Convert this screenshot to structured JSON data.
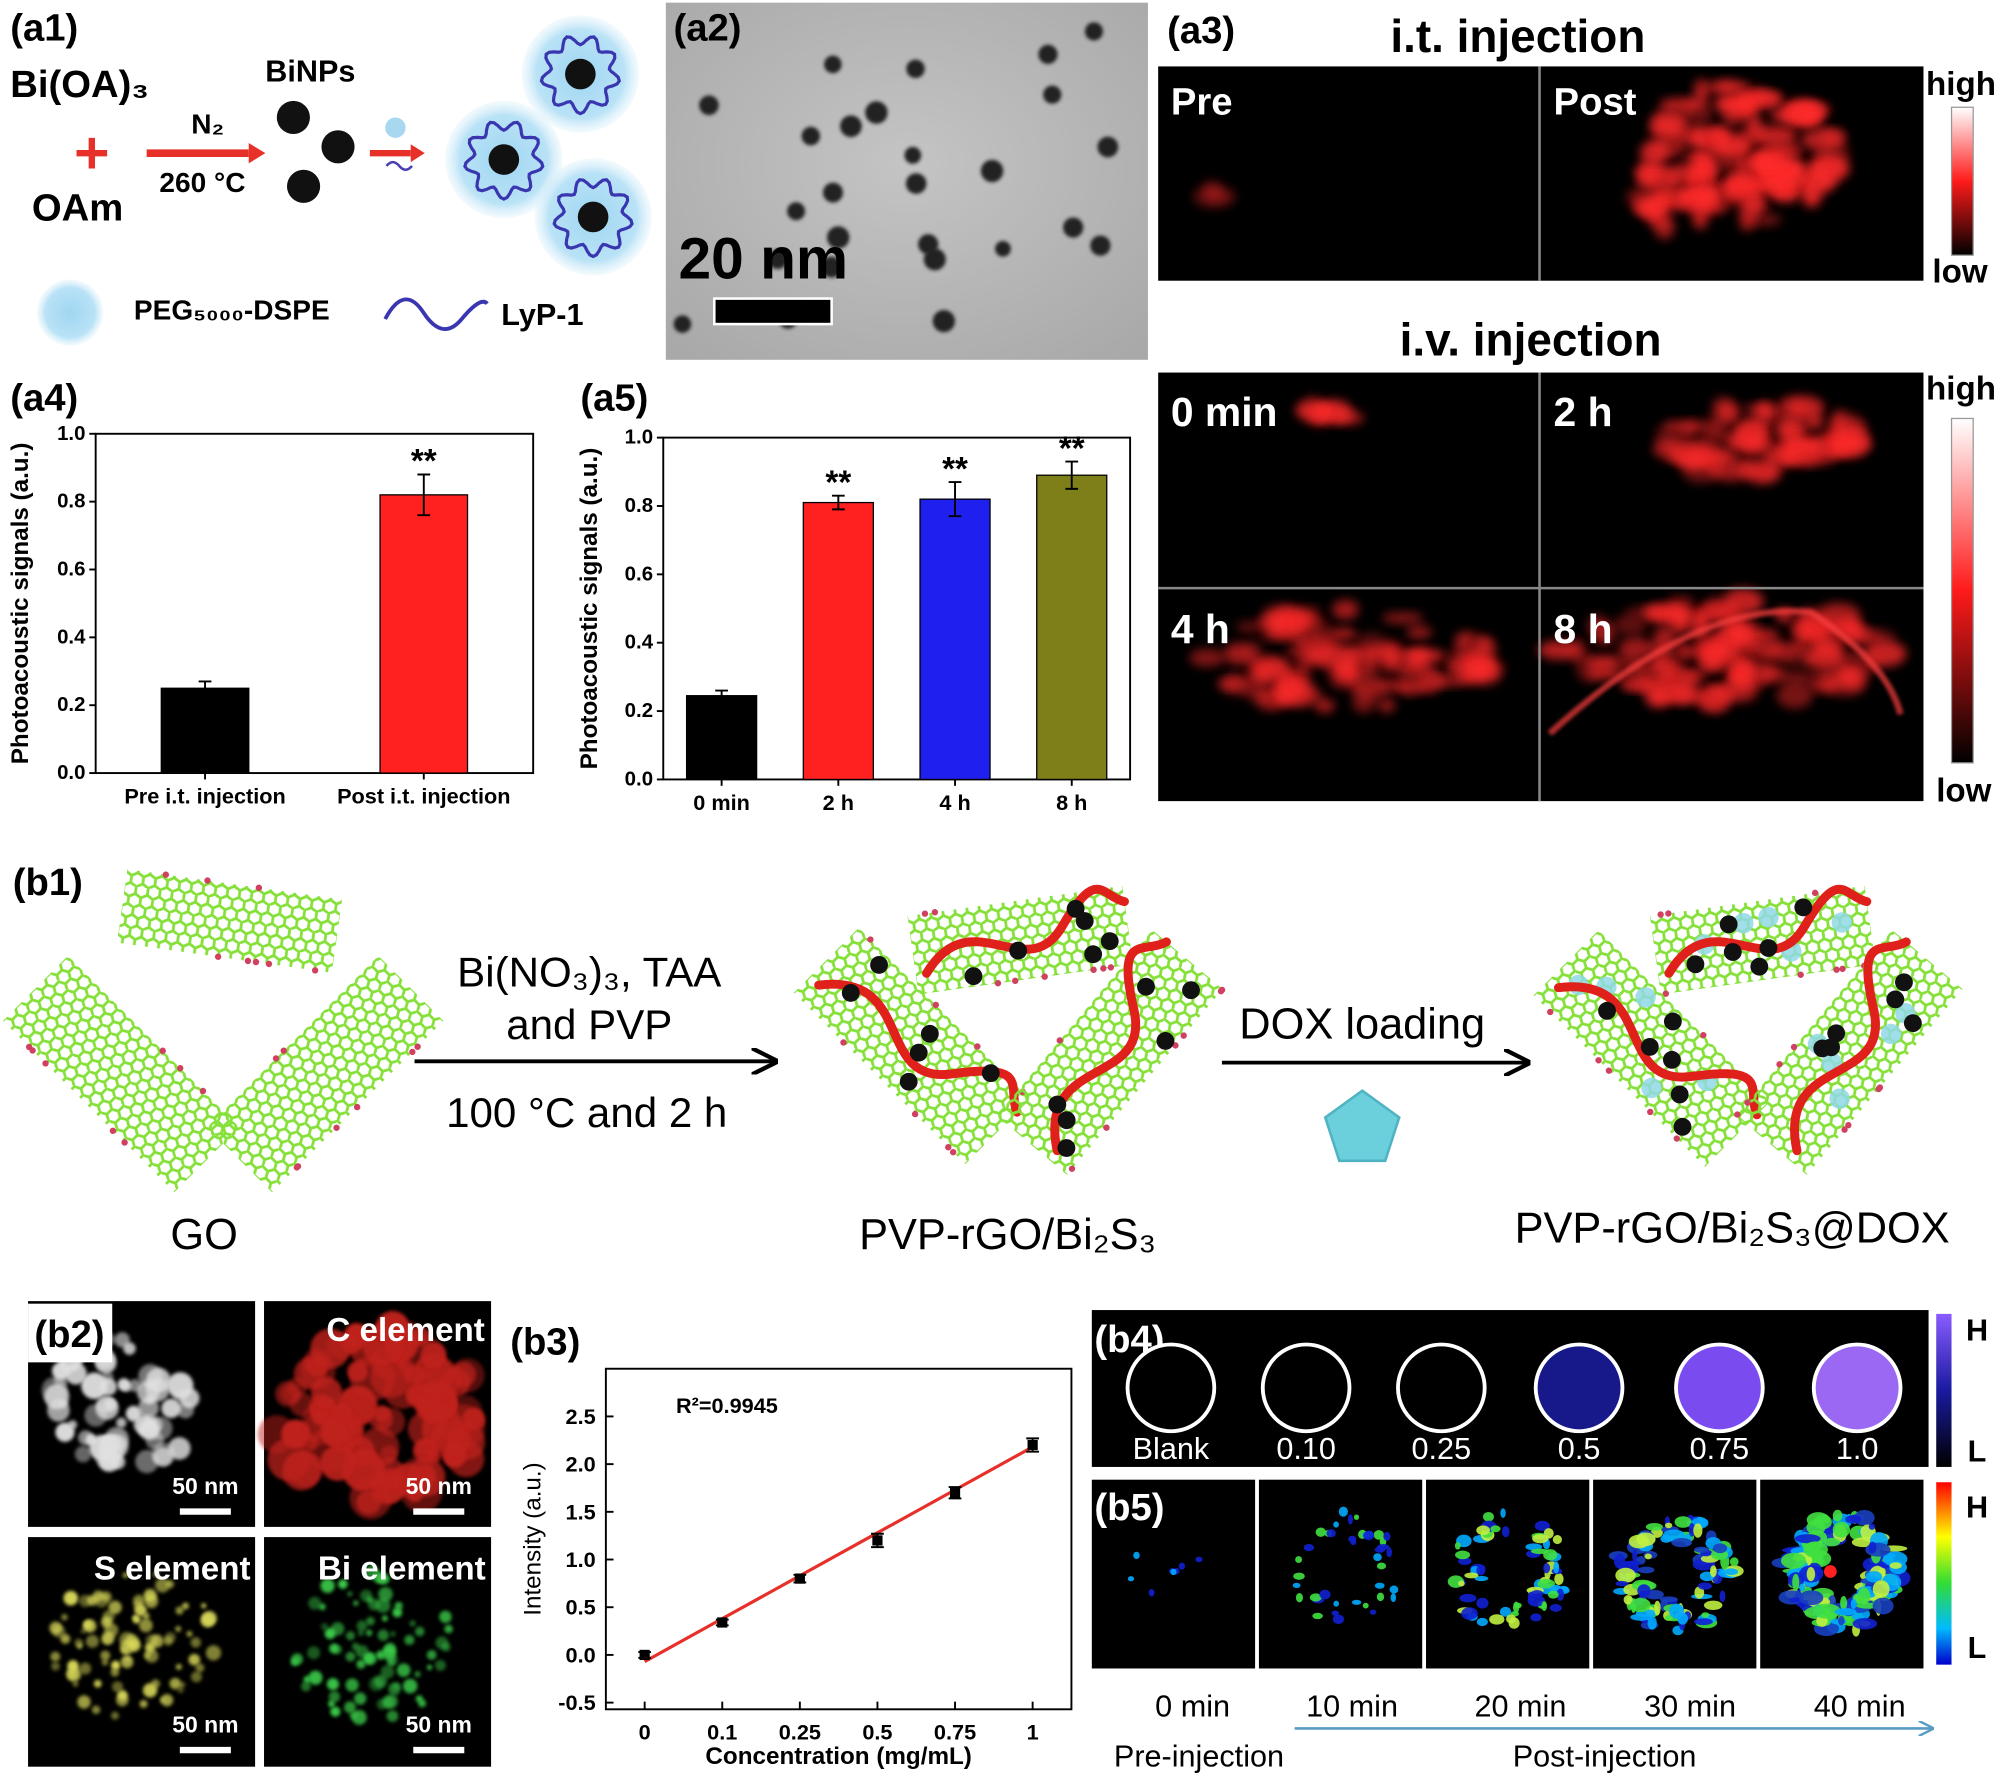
{
  "panel_labels": [
    "(a1)",
    "(a2)",
    "(a3)",
    "(a4)",
    "(a5)",
    "(b1)",
    "(b2)",
    "(b3)",
    "(b4)",
    "(b5)"
  ],
  "a1": {
    "reactant": "Bi(OA)₃",
    "solvent": "OAm",
    "gas": "N₂",
    "temperature": "260 °C",
    "product": "BiNPs",
    "legend": [
      "PEG₅₀₀₀-DSPE",
      "LyP-1"
    ]
  },
  "a2": {
    "scale_bar": "20 nm"
  },
  "a3": {
    "it_title": "i.t. injection",
    "it_labels": [
      "Pre",
      "Post"
    ],
    "iv_title": "i.v. injection",
    "iv_labels": [
      "0 min",
      "2 h",
      "4 h",
      "8 h"
    ],
    "colorbar": [
      "high",
      "low"
    ]
  },
  "b1": {
    "start": "GO",
    "reagents": [
      "Bi(NO₃)₃, TAA",
      "and PVP"
    ],
    "condition": "100 °C and 2 h",
    "intermediate": "PVP-rGO/Bi₂S₃",
    "step": "DOX loading",
    "final": "PVP-rGO/Bi₂S₃@DOX"
  },
  "b2": {
    "labels": [
      "C element",
      "S element",
      "Bi element"
    ],
    "scale_bar": "50 nm"
  },
  "b4": {
    "labels": [
      "Blank",
      "0.10",
      "0.25",
      "0.5",
      "0.75",
      "1.0"
    ],
    "colors": [
      "#000000",
      "#000000",
      "#000000",
      "#17188a",
      "#7a4cf0",
      "#9a68f2"
    ],
    "colorbar": [
      "H",
      "L"
    ]
  },
  "b5": {
    "times": [
      "0 min",
      "10 min",
      "20 min",
      "30 min",
      "40 min"
    ],
    "phases": [
      "Pre-injection",
      "Post-injection"
    ],
    "colorbar": [
      "H",
      "L"
    ]
  },
  "chart_data": [
    {
      "type": "bar",
      "y_label": "Photoacoustic signals (a.u.)",
      "categories": [
        "Pre i.t. injection",
        "Post i.t. injection"
      ],
      "values": [
        0.25,
        0.82
      ],
      "errors": [
        0.02,
        0.06
      ],
      "colors": [
        "#000000",
        "#ff2020"
      ],
      "significance": [
        null,
        "**"
      ],
      "ylim": [
        0,
        1.0
      ],
      "yticks": [
        {
          "value": 0,
          "label": "0.0"
        },
        0.2,
        0.4,
        0.6,
        0.8,
        {
          "value": 1,
          "label": "1.0"
        }
      ]
    },
    {
      "type": "bar",
      "y_label": "Photoacoustic signals (a.u.)",
      "categories": [
        "0 min",
        "2 h",
        "4 h",
        "8 h"
      ],
      "values": [
        0.245,
        0.81,
        0.82,
        0.89
      ],
      "errors": [
        0.015,
        0.02,
        0.05,
        0.04
      ],
      "colors": [
        "#000000",
        "#ff2020",
        "#2020ee",
        "#7f7f1a"
      ],
      "significance": [
        null,
        "**",
        "**",
        "**"
      ],
      "ylim": [
        0,
        1.0
      ],
      "yticks": [
        {
          "value": 0,
          "label": "0.0"
        },
        0.2,
        0.4,
        0.6,
        0.8,
        {
          "value": 1,
          "label": "1.0"
        }
      ]
    },
    {
      "type": "line",
      "x_label": "Concentration (mg/mL)",
      "y_label": "Intensity (a.u.)",
      "annotation": "R²=0.9945",
      "categories": [
        "0",
        "0.1",
        "0.25",
        "0.5",
        "0.75",
        "1"
      ],
      "values": [
        0,
        0.34,
        0.8,
        1.2,
        1.7,
        2.2
      ],
      "errors": [
        0.03,
        0.03,
        0.04,
        0.07,
        0.06,
        0.07
      ],
      "color": "#000000",
      "fit": {
        "values": [
          -0.07,
          0.38,
          0.83,
          1.28,
          1.73,
          2.18
        ],
        "color": "#e8302a"
      },
      "ylim": [
        -0.57,
        3.0
      ],
      "yticks": [
        -0.5,
        {
          "value": 0,
          "label": "0.0"
        },
        0.5,
        {
          "value": 1,
          "label": "1.0"
        },
        1.5,
        {
          "value": 2,
          "label": "2.0"
        },
        2.5
      ]
    }
  ]
}
